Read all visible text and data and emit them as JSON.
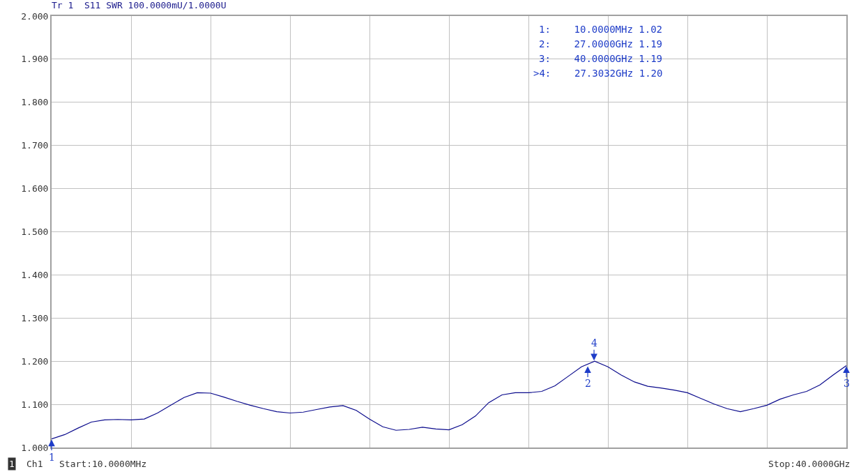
{
  "chart_data": {
    "type": "line",
    "title": "Tr 1  S11 SWR 100.0000mU/1.0000U",
    "categories": [
      null,
      null,
      null,
      null,
      null,
      null,
      null,
      null,
      null,
      null,
      null,
      null,
      null,
      null,
      null,
      null,
      null,
      null,
      null,
      null,
      null,
      null,
      null,
      null,
      null,
      null,
      null,
      null,
      null,
      null,
      null,
      null,
      null,
      null,
      null,
      null,
      null,
      null,
      null,
      null,
      null,
      null,
      null,
      null,
      null,
      null,
      null,
      null,
      null,
      null,
      null,
      null,
      null,
      null,
      null,
      null,
      null,
      null,
      null,
      null,
      null
    ],
    "series": [
      {
        "color": "#0a0a8c",
        "values": [
          1.02,
          1.03,
          1.045,
          1.059,
          1.064,
          1.065,
          1.064,
          1.066,
          1.08,
          1.098,
          1.116,
          1.127,
          1.126,
          1.117,
          1.107,
          1.098,
          1.09,
          1.083,
          1.08,
          1.082,
          1.088,
          1.094,
          1.097,
          1.086,
          1.066,
          1.048,
          1.04,
          1.042,
          1.047,
          1.043,
          1.041,
          1.053,
          1.073,
          1.104,
          1.122,
          1.127,
          1.127,
          1.13,
          1.143,
          1.165,
          1.187,
          1.2,
          1.187,
          1.168,
          1.152,
          1.142,
          1.138,
          1.133,
          1.127,
          1.114,
          1.101,
          1.09,
          1.083,
          1.09,
          1.098,
          1.112,
          1.122,
          1.13,
          1.145,
          1.168,
          1.19
        ]
      }
    ],
    "ylim": [
      1,
      2
    ],
    "yticks": [
      {
        "value": 1,
        "label": "1.000"
      },
      {
        "value": 1.1,
        "label": "1.100"
      },
      {
        "value": 1.2,
        "label": "1.200"
      },
      {
        "value": 1.3,
        "label": "1.300"
      },
      {
        "value": 1.4,
        "label": "1.400"
      },
      {
        "value": 1.5,
        "label": "1.500"
      },
      {
        "value": 1.6,
        "label": "1.600"
      },
      {
        "value": 1.7,
        "label": "1.700"
      },
      {
        "value": 1.8,
        "label": "1.800"
      },
      {
        "value": 1.9,
        "label": "1.900"
      },
      {
        "value": 2,
        "label": "2.000"
      }
    ],
    "grid": true,
    "tick_labels": "y",
    "annotations": [
      "1:    10.0000MHz 1.02",
      "2:    27.0000GHz 1.19",
      "3:    40.0000GHz 1.19",
      ">4:    27.3032GHz 1.20",
      "1",
      "Ch1",
      "Start:10.0000MHz",
      "Stop:40.0000GHz",
      {
        "text": "1",
        "y": 1.02
      },
      {
        "text": "2",
        "y": 1.19
      },
      {
        "text": "3",
        "y": 1.19
      },
      {
        "text": "4",
        "y": 1.2
      }
    ]
  }
}
